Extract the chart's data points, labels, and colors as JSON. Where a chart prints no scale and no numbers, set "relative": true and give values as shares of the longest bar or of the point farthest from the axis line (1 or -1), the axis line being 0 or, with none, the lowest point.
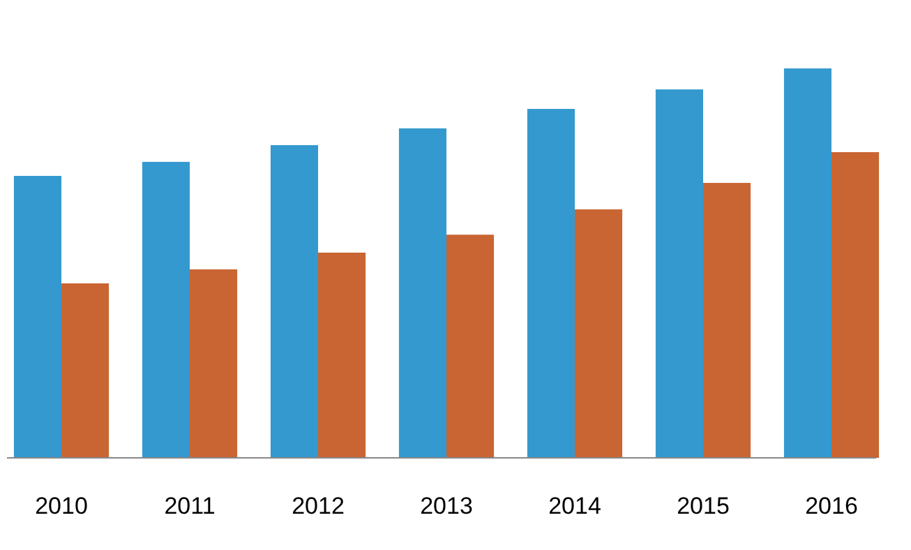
{
  "chart_data": {
    "type": "bar",
    "relative": true,
    "categories": [
      "2010",
      "2011",
      "2012",
      "2013",
      "2014",
      "2015",
      "2016"
    ],
    "series": [
      {
        "color": "#3499ce",
        "values": [
          0.724,
          0.76,
          0.803,
          0.846,
          0.896,
          0.946,
          1
        ]
      },
      {
        "color": "#c96532",
        "values": [
          0.448,
          0.484,
          0.527,
          0.573,
          0.638,
          0.706,
          0.785
        ]
      }
    ]
  }
}
